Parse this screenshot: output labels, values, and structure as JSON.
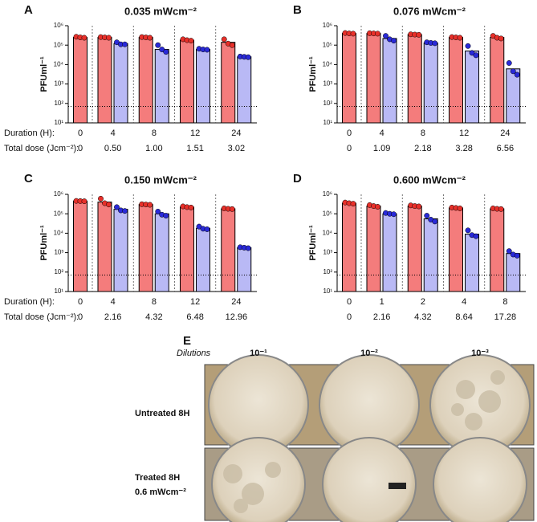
{
  "chart_data": [
    {
      "type": "bar",
      "panel": "A",
      "title": "0.035 mWcm⁻²",
      "y_label": "PFUml⁻¹",
      "log_scale": true,
      "ylim": [
        10,
        1000000
      ],
      "yticks": [
        {
          "value": 10,
          "label": "10¹"
        },
        {
          "value": 100,
          "label": "10²"
        },
        {
          "value": 1000,
          "label": "10³"
        },
        {
          "value": 10000,
          "label": "10⁴"
        },
        {
          "value": 100000,
          "label": "10⁵"
        },
        {
          "value": 1000000,
          "label": "10⁶"
        }
      ],
      "threshold": 70,
      "row_labels": [
        "Duration (H):",
        "Total dose (Jcm⁻²):"
      ],
      "categories": [
        "0",
        "4",
        "8",
        "12",
        "24"
      ],
      "dose_labels": [
        "0",
        "0.50",
        "1.00",
        "1.51",
        "3.02"
      ],
      "series": [
        {
          "color": "#f47c7c",
          "point_color": "#e8302a",
          "values": [
            250000,
            250000,
            250000,
            180000,
            140000
          ],
          "points": [
            [
              270000,
              250000,
              240000
            ],
            [
              260000,
              250000,
              240000
            ],
            [
              260000,
              250000,
              240000
            ],
            [
              200000,
              180000,
              170000
            ],
            [
              200000,
              120000,
              100000
            ]
          ]
        },
        {
          "color": "#b9b9f5",
          "point_color": "#2a2ad8",
          "values": [
            null,
            120000,
            60000,
            60000,
            25000
          ],
          "points": [
            null,
            [
              140000,
              110000,
              110000
            ],
            [
              100000,
              60000,
              45000
            ],
            [
              65000,
              60000,
              58000
            ],
            [
              26000,
              25000,
              24000
            ]
          ]
        }
      ]
    },
    {
      "type": "bar",
      "panel": "B",
      "title": "0.076 mWcm⁻²",
      "y_label": "PFUml⁻¹",
      "log_scale": true,
      "ylim": [
        10,
        1000000
      ],
      "yticks": [
        {
          "value": 10,
          "label": "10¹"
        },
        {
          "value": 100,
          "label": "10²"
        },
        {
          "value": 1000,
          "label": "10³"
        },
        {
          "value": 10000,
          "label": "10⁴"
        },
        {
          "value": 100000,
          "label": "10⁵"
        },
        {
          "value": 1000000,
          "label": "10⁶"
        }
      ],
      "threshold": 70,
      "categories": [
        "0",
        "4",
        "8",
        "12",
        "24"
      ],
      "dose_labels": [
        "0",
        "1.09",
        "2.18",
        "3.28",
        "6.56"
      ],
      "series": [
        {
          "color": "#f47c7c",
          "point_color": "#e8302a",
          "values": [
            400000,
            400000,
            350000,
            250000,
            250000
          ],
          "points": [
            [
              420000,
              400000,
              390000
            ],
            [
              410000,
              400000,
              390000
            ],
            [
              360000,
              350000,
              340000
            ],
            [
              260000,
              250000,
              240000
            ],
            [
              300000,
              240000,
              220000
            ]
          ]
        },
        {
          "color": "#b9b9f5",
          "point_color": "#2a2ad8",
          "values": [
            null,
            220000,
            130000,
            50000,
            6000
          ],
          "points": [
            null,
            [
              300000,
              200000,
              170000
            ],
            [
              140000,
              130000,
              125000
            ],
            [
              90000,
              40000,
              30000
            ],
            [
              12000,
              4500,
              3000
            ]
          ]
        }
      ]
    },
    {
      "type": "bar",
      "panel": "C",
      "title": "0.150 mWcm⁻²",
      "y_label": "PFUml⁻¹",
      "log_scale": true,
      "ylim": [
        10,
        1000000
      ],
      "yticks": [
        {
          "value": 10,
          "label": "10¹"
        },
        {
          "value": 100,
          "label": "10²"
        },
        {
          "value": 1000,
          "label": "10³"
        },
        {
          "value": 10000,
          "label": "10⁴"
        },
        {
          "value": 100000,
          "label": "10⁵"
        },
        {
          "value": 1000000,
          "label": "10⁶"
        }
      ],
      "threshold": 70,
      "row_labels": [
        "Duration (H):",
        "Total dose (Jcm⁻²):"
      ],
      "categories": [
        "0",
        "4",
        "8",
        "12",
        "24"
      ],
      "dose_labels": [
        "0",
        "2.16",
        "4.32",
        "6.48",
        "12.96"
      ],
      "series": [
        {
          "color": "#f47c7c",
          "point_color": "#e8302a",
          "values": [
            450000,
            400000,
            300000,
            220000,
            180000
          ],
          "points": [
            [
              460000,
              450000,
              440000
            ],
            [
              600000,
              350000,
              300000
            ],
            [
              310000,
              300000,
              290000
            ],
            [
              240000,
              220000,
              210000
            ],
            [
              190000,
              180000,
              175000
            ]
          ]
        },
        {
          "color": "#b9b9f5",
          "point_color": "#2a2ad8",
          "values": [
            null,
            170000,
            100000,
            18000,
            1800
          ],
          "points": [
            null,
            [
              220000,
              150000,
              140000
            ],
            [
              130000,
              90000,
              80000
            ],
            [
              22000,
              17000,
              16000
            ],
            [
              1900,
              1800,
              1700
            ]
          ]
        }
      ]
    },
    {
      "type": "bar",
      "panel": "D",
      "title": "0.600 mWcm⁻²",
      "y_label": "PFUml⁻¹",
      "log_scale": true,
      "ylim": [
        10,
        1000000
      ],
      "yticks": [
        {
          "value": 10,
          "label": "10¹"
        },
        {
          "value": 100,
          "label": "10²"
        },
        {
          "value": 1000,
          "label": "10³"
        },
        {
          "value": 10000,
          "label": "10⁴"
        },
        {
          "value": 100000,
          "label": "10⁵"
        },
        {
          "value": 1000000,
          "label": "10⁶"
        }
      ],
      "threshold": 70,
      "categories": [
        "0",
        "1",
        "2",
        "4",
        "8"
      ],
      "dose_labels": [
        "0",
        "2.16",
        "4.32",
        "8.64",
        "17.28"
      ],
      "series": [
        {
          "color": "#f47c7c",
          "point_color": "#e8302a",
          "values": [
            350000,
            250000,
            250000,
            200000,
            180000
          ],
          "points": [
            [
              380000,
              350000,
              330000
            ],
            [
              280000,
              250000,
              230000
            ],
            [
              270000,
              250000,
              240000
            ],
            [
              210000,
              200000,
              190000
            ],
            [
              190000,
              180000,
              175000
            ]
          ]
        },
        {
          "color": "#b9b9f5",
          "point_color": "#2a2ad8",
          "values": [
            null,
            100000,
            55000,
            9000,
            900
          ],
          "points": [
            null,
            [
              110000,
              100000,
              95000
            ],
            [
              80000,
              50000,
              40000
            ],
            [
              14000,
              8000,
              7000
            ],
            [
              1200,
              800,
              700
            ]
          ]
        }
      ]
    }
  ],
  "panel_e": {
    "panel": "E",
    "dilutions_label": "Dilutions",
    "dilutions": [
      "10⁻¹",
      "10⁻²",
      "10⁻³"
    ],
    "rows": [
      {
        "label": "Untreated 8H"
      },
      {
        "label": "Treated 8H",
        "sublabel": "0.6 mWcm⁻²"
      }
    ]
  }
}
